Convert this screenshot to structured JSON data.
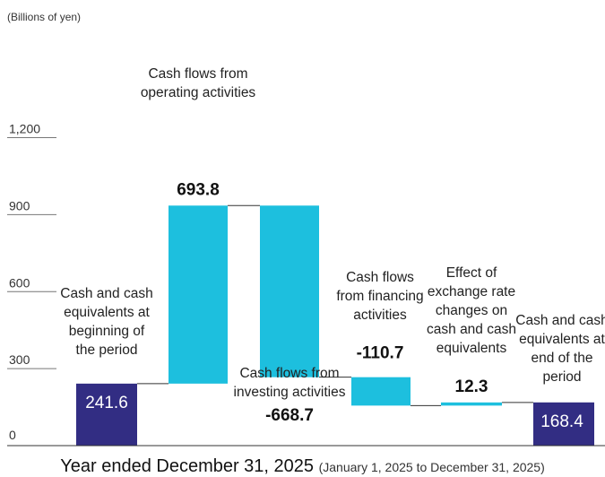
{
  "chart_data": {
    "type": "waterfall",
    "unit_label": "(Billions of yen)",
    "y_ticks": [
      "1,200",
      "900",
      "600",
      "300",
      "0"
    ],
    "ylim": [
      0,
      1200
    ],
    "colors": {
      "total": "#322d83",
      "change": "#1dbfde",
      "connector": "#333333"
    },
    "bars": [
      {
        "label_lines": [
          "Cash and cash",
          "equivalents at",
          "beginning of",
          "the period"
        ],
        "value": 241.6,
        "value_label": "241.6",
        "kind": "total"
      },
      {
        "label_lines": [
          "Cash flows from",
          "operating activities"
        ],
        "value": 693.8,
        "value_label": "693.8",
        "kind": "change"
      },
      {
        "label_lines": [
          "Cash flows from",
          "investing activities"
        ],
        "value": -668.7,
        "value_label": "-668.7",
        "kind": "change"
      },
      {
        "label_lines": [
          "Cash flows",
          "from financing",
          "activities"
        ],
        "value": -110.7,
        "value_label": "-110.7",
        "kind": "change"
      },
      {
        "label_lines": [
          "Effect of",
          "exchange rate",
          "changes on",
          "cash and cash",
          "equivalents"
        ],
        "value": 12.3,
        "value_label": "12.3",
        "kind": "change"
      },
      {
        "label_lines": [
          "Cash and cash",
          "equivalents at",
          "end of the",
          "period"
        ],
        "value": 168.4,
        "value_label": "168.4",
        "kind": "total"
      }
    ],
    "footer_main": "Year ended December 31, 2025",
    "footer_sub": "(January 1, 2025 to December 31, 2025)"
  }
}
